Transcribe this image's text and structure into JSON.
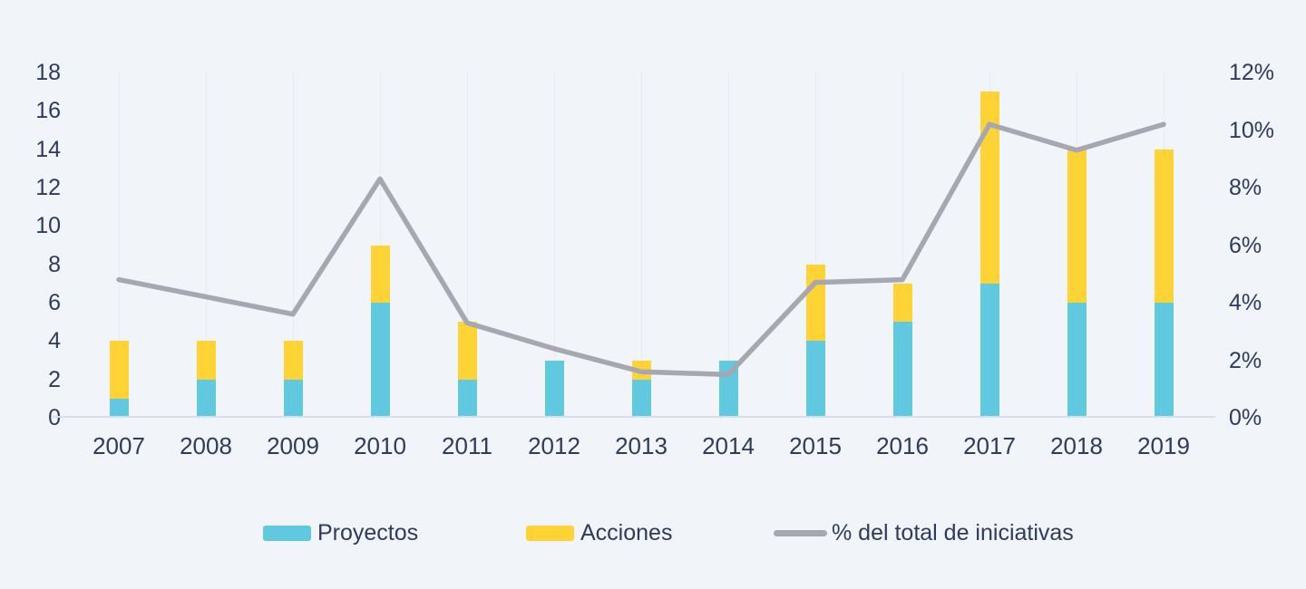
{
  "colors": {
    "background": "#F1F4F9",
    "proyectos": "#61C9DF",
    "acciones": "#FDD335",
    "line": "#A6A7B1",
    "text": "#2F3B5E",
    "axis_line": "#DADEE5",
    "gridline": "#E8ECF3"
  },
  "legend": {
    "items": [
      {
        "label": "Proyectos",
        "swatch": "bar",
        "color_key": "proyectos"
      },
      {
        "label": "Acciones",
        "swatch": "bar",
        "color_key": "acciones"
      },
      {
        "label": "% del total de iniciativas",
        "swatch": "line",
        "color_key": "line"
      }
    ]
  },
  "chart_data": {
    "type": "bar",
    "subtype": "stacked-bars-with-line-dual-axis",
    "title": "",
    "xlabel": "",
    "ylabel": "",
    "categories": [
      "2007",
      "2008",
      "2009",
      "2010",
      "2011",
      "2012",
      "2013",
      "2014",
      "2015",
      "2016",
      "2017",
      "2018",
      "2019"
    ],
    "series": [
      {
        "name": "Proyectos",
        "type": "bar",
        "stack": "total",
        "axis": "left",
        "values": [
          1,
          2,
          2,
          6,
          2,
          3,
          2,
          3,
          4,
          5,
          7,
          6,
          6
        ]
      },
      {
        "name": "Acciones",
        "type": "bar",
        "stack": "total",
        "axis": "left",
        "values": [
          3,
          2,
          2,
          3,
          3,
          0,
          1,
          0,
          4,
          2,
          10,
          8,
          8
        ]
      },
      {
        "name": "% del total de iniciativas",
        "type": "line",
        "axis": "right",
        "values": [
          4.8,
          4.2,
          3.6,
          8.3,
          3.3,
          2.4,
          1.6,
          1.5,
          4.7,
          4.8,
          10.2,
          9.3,
          10.2
        ]
      }
    ],
    "left_axis": {
      "min": 0,
      "max": 18,
      "tick_step": 2,
      "ticks": [
        "18",
        "16",
        "14",
        "12",
        "10",
        "8",
        "6",
        "4",
        "2",
        "0"
      ]
    },
    "right_axis": {
      "min": 0,
      "max": 12,
      "tick_step": 2,
      "unit": "%",
      "ticks": [
        "12%",
        "10%",
        "8%",
        "6%",
        "4%",
        "2%",
        "0%"
      ]
    },
    "grid": "faint vertical category lines only",
    "legend_position": "bottom"
  }
}
